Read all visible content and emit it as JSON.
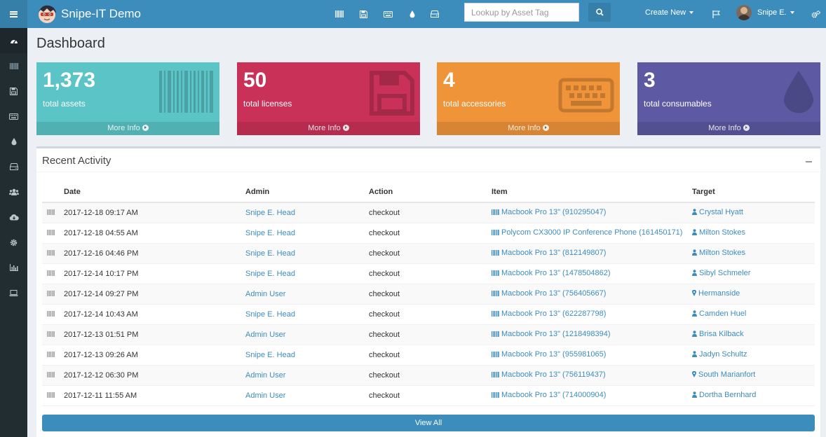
{
  "app": {
    "title": "Snipe-IT Demo"
  },
  "header": {
    "search": {
      "placeholder": "Lookup by Asset Tag"
    },
    "create_new_label": "Create New",
    "user_name": "Snipe E.",
    "nav_icons": [
      "barcode-icon",
      "floppy-icon",
      "keyboard-icon",
      "tint-icon",
      "hdd-icon"
    ]
  },
  "sidebar": {
    "items": [
      {
        "name": "dashboard-icon",
        "active": true
      },
      {
        "name": "barcode-icon"
      },
      {
        "name": "floppy-icon"
      },
      {
        "name": "keyboard-icon"
      },
      {
        "name": "tint-icon"
      },
      {
        "name": "hdd-icon"
      },
      {
        "name": "users-icon"
      },
      {
        "name": "cloud-download-icon"
      },
      {
        "name": "gear-icon"
      },
      {
        "name": "bar-chart-icon"
      },
      {
        "name": "laptop-icon"
      }
    ]
  },
  "page": {
    "title": "Dashboard"
  },
  "stats": [
    {
      "value": "1,373",
      "label": "total assets",
      "more": "More Info",
      "color": "#5bc4c7",
      "icon": "barcode-icon"
    },
    {
      "value": "50",
      "label": "total licenses",
      "more": "More Info",
      "color": "#ca3158",
      "icon": "floppy-icon"
    },
    {
      "value": "4",
      "label": "total accessories",
      "more": "More Info",
      "color": "#f0943a",
      "icon": "keyboard-icon"
    },
    {
      "value": "3",
      "label": "total consumables",
      "more": "More Info",
      "color": "#5d5aa3",
      "icon": "tint-icon"
    }
  ],
  "activity": {
    "title": "Recent Activity",
    "columns": {
      "date": "Date",
      "admin": "Admin",
      "action": "Action",
      "item": "Item",
      "target": "Target"
    },
    "rows": [
      {
        "date": "2017-12-18 09:17 AM",
        "admin": "Snipe E. Head",
        "action": "checkout",
        "item": "Macbook Pro 13\" (910295047)",
        "target": "Crystal Hyatt",
        "target_type": "person"
      },
      {
        "date": "2017-12-18 04:55 AM",
        "admin": "Snipe E. Head",
        "action": "checkout",
        "item": "Polycom CX3000 IP Conference Phone (161450171)",
        "target": "Milton Stokes",
        "target_type": "person"
      },
      {
        "date": "2017-12-16 04:46 PM",
        "admin": "Snipe E. Head",
        "action": "checkout",
        "item": "Macbook Pro 13\" (812149807)",
        "target": "Milton Stokes",
        "target_type": "person"
      },
      {
        "date": "2017-12-14 10:17 PM",
        "admin": "Snipe E. Head",
        "action": "checkout",
        "item": "Macbook Pro 13\" (1478504862)",
        "target": "Sibyl Schmeler",
        "target_type": "person"
      },
      {
        "date": "2017-12-14 09:27 PM",
        "admin": "Admin User",
        "action": "checkout",
        "item": "Macbook Pro 13\" (756405667)",
        "target": "Hermanside",
        "target_type": "location"
      },
      {
        "date": "2017-12-14 10:43 AM",
        "admin": "Snipe E. Head",
        "action": "checkout",
        "item": "Macbook Pro 13\" (622287798)",
        "target": "Camden Huel",
        "target_type": "person"
      },
      {
        "date": "2017-12-13 01:51 PM",
        "admin": "Admin User",
        "action": "checkout",
        "item": "Macbook Pro 13\" (1218498394)",
        "target": "Brisa Kilback",
        "target_type": "person"
      },
      {
        "date": "2017-12-13 09:26 AM",
        "admin": "Snipe E. Head",
        "action": "checkout",
        "item": "Macbook Pro 13\" (955981065)",
        "target": "Jadyn Schultz",
        "target_type": "person"
      },
      {
        "date": "2017-12-12 06:30 PM",
        "admin": "Admin User",
        "action": "checkout",
        "item": "Macbook Pro 13\" (756119437)",
        "target": "South Marianfort",
        "target_type": "location"
      },
      {
        "date": "2017-12-11 11:55 AM",
        "admin": "Admin User",
        "action": "checkout",
        "item": "Macbook Pro 13\" (714000904)",
        "target": "Dortha Bernhard",
        "target_type": "person"
      }
    ],
    "view_all_label": "View All"
  },
  "colors": {
    "navbar": "#3c8dbc",
    "sidebar": "#222d32",
    "link": "#3c8dbc"
  }
}
